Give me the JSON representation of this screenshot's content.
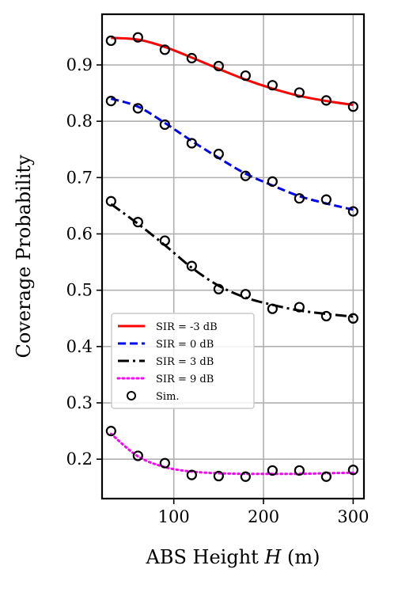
{
  "chart_data": {
    "type": "line",
    "xlabel": "ABS Height H (m)",
    "xlabel_parts": {
      "pre": "ABS Height ",
      "var": "H",
      "post": " (m)"
    },
    "ylabel": "Coverage Probability",
    "xlim": [
      20,
      312
    ],
    "ylim": [
      0.13,
      0.99
    ],
    "xticks": [
      100,
      200,
      300
    ],
    "yticks": [
      0.2,
      0.3,
      0.4,
      0.5,
      0.6,
      0.7,
      0.8,
      0.9
    ],
    "grid": true,
    "legend_position": "center-left",
    "series": [
      {
        "name": "SIR = -3 dB",
        "color": "#ff0000",
        "style": "solid",
        "x": [
          30,
          60,
          90,
          120,
          150,
          180,
          210,
          240,
          270,
          300
        ],
        "y": [
          0.948,
          0.945,
          0.932,
          0.913,
          0.893,
          0.874,
          0.858,
          0.845,
          0.836,
          0.829
        ]
      },
      {
        "name": "SIR = 0 dB",
        "color": "#0000ff",
        "style": "dashed",
        "x": [
          30,
          60,
          90,
          120,
          150,
          180,
          210,
          240,
          270,
          300
        ],
        "y": [
          0.84,
          0.826,
          0.797,
          0.765,
          0.735,
          0.707,
          0.686,
          0.667,
          0.654,
          0.643
        ]
      },
      {
        "name": "SIR = 3 dB",
        "color": "#000000",
        "style": "dashdot",
        "x": [
          30,
          60,
          90,
          120,
          150,
          180,
          210,
          240,
          270,
          300
        ],
        "y": [
          0.653,
          0.618,
          0.58,
          0.54,
          0.508,
          0.487,
          0.474,
          0.464,
          0.458,
          0.453
        ]
      },
      {
        "name": "SIR = 9 dB",
        "color": "#ff00ff",
        "style": "dotted",
        "x": [
          30,
          60,
          90,
          120,
          150,
          180,
          210,
          240,
          270,
          300
        ],
        "y": [
          0.245,
          0.205,
          0.186,
          0.178,
          0.175,
          0.174,
          0.174,
          0.174,
          0.175,
          0.176
        ]
      }
    ],
    "simulation": {
      "name": "Sim.",
      "marker": "circle",
      "groups": [
        {
          "x": [
            30,
            60,
            90,
            120,
            150,
            180,
            210,
            240,
            270,
            300
          ],
          "y": [
            0.943,
            0.949,
            0.927,
            0.912,
            0.898,
            0.881,
            0.864,
            0.851,
            0.837,
            0.826
          ]
        },
        {
          "x": [
            30,
            60,
            90,
            120,
            150,
            180,
            210,
            240,
            270,
            300
          ],
          "y": [
            0.836,
            0.823,
            0.794,
            0.761,
            0.742,
            0.703,
            0.693,
            0.663,
            0.661,
            0.64
          ]
        },
        {
          "x": [
            30,
            60,
            90,
            120,
            150,
            180,
            210,
            240,
            270,
            300
          ],
          "y": [
            0.658,
            0.621,
            0.588,
            0.543,
            0.502,
            0.493,
            0.467,
            0.47,
            0.454,
            0.45
          ]
        },
        {
          "x": [
            30,
            60,
            90,
            120,
            150,
            180,
            210,
            240,
            270,
            300
          ],
          "y": [
            0.25,
            0.206,
            0.193,
            0.172,
            0.17,
            0.169,
            0.18,
            0.18,
            0.169,
            0.181
          ]
        }
      ]
    }
  }
}
